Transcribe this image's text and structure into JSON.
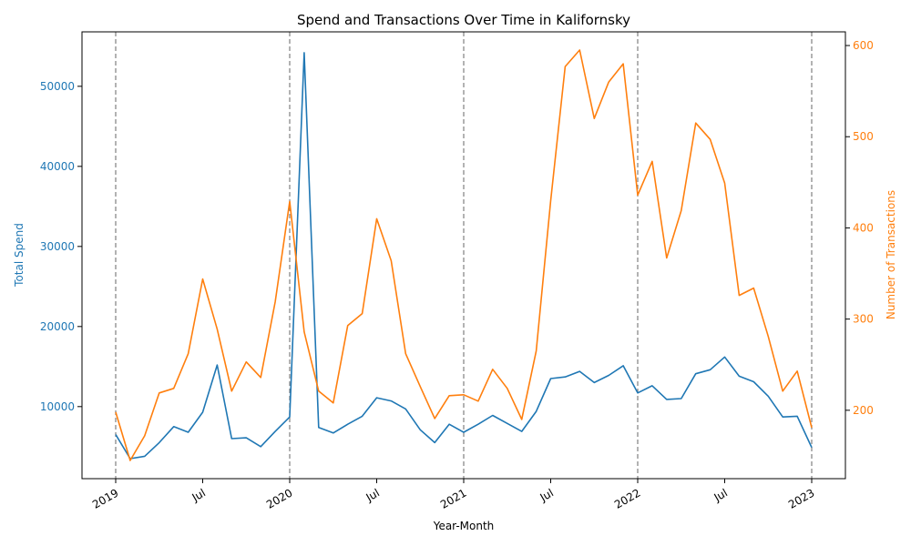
{
  "chart_data": {
    "type": "line",
    "title": "Spend and Transactions Over Time in Kalifornsky",
    "xlabel": "Year-Month",
    "ylabel_left": "Total Spend",
    "ylabel_right": "Number of Transactions",
    "x_ticks": [
      {
        "label": "2019",
        "date": "2019-01"
      },
      {
        "label": "Jul",
        "date": "2019-07"
      },
      {
        "label": "2020",
        "date": "2020-01"
      },
      {
        "label": "Jul",
        "date": "2020-07"
      },
      {
        "label": "2021",
        "date": "2021-01"
      },
      {
        "label": "Jul",
        "date": "2021-07"
      },
      {
        "label": "2022",
        "date": "2022-01"
      },
      {
        "label": "Jul",
        "date": "2022-07"
      },
      {
        "label": "2023",
        "date": "2023-01"
      }
    ],
    "year_markers": [
      "2019-01",
      "2020-01",
      "2021-01",
      "2022-01",
      "2023-01"
    ],
    "x": [
      "2019-01",
      "2019-02",
      "2019-03",
      "2019-04",
      "2019-05",
      "2019-06",
      "2019-07",
      "2019-08",
      "2019-09",
      "2019-10",
      "2019-11",
      "2019-12",
      "2020-01",
      "2020-02",
      "2020-03",
      "2020-04",
      "2020-05",
      "2020-06",
      "2020-07",
      "2020-08",
      "2020-09",
      "2020-10",
      "2020-11",
      "2020-12",
      "2021-01",
      "2021-02",
      "2021-03",
      "2021-04",
      "2021-05",
      "2021-06",
      "2021-07",
      "2021-08",
      "2021-09",
      "2021-10",
      "2021-11",
      "2021-12",
      "2022-01",
      "2022-02",
      "2022-03",
      "2022-04",
      "2022-05",
      "2022-06",
      "2022-07",
      "2022-08",
      "2022-09",
      "2022-10",
      "2022-11",
      "2022-12",
      "2023-01"
    ],
    "series": [
      {
        "name": "Total Spend",
        "axis": "left",
        "color": "#1f77b4",
        "values": [
          6500,
          3500,
          3800,
          5500,
          7500,
          6800,
          9300,
          15200,
          6000,
          6100,
          5000,
          6900,
          8700,
          54200,
          7400,
          6700,
          7800,
          8800,
          11100,
          10700,
          9700,
          7100,
          5500,
          7800,
          6800,
          7800,
          8900,
          7900,
          6900,
          9400,
          13500,
          13700,
          14400,
          13000,
          13900,
          15100,
          11700,
          12600,
          10900,
          11000,
          14100,
          14600,
          16200,
          13800,
          13100,
          11300,
          8700,
          8800,
          4900
        ]
      },
      {
        "name": "Number of Transactions",
        "axis": "right",
        "color": "#ff7f0e",
        "values": [
          198,
          145,
          172,
          219,
          224,
          262,
          344,
          289,
          221,
          253,
          236,
          319,
          429,
          286,
          221,
          208,
          293,
          306,
          410,
          364,
          262,
          226,
          191,
          216,
          217,
          210,
          245,
          224,
          190,
          265,
          430,
          577,
          595,
          520,
          560,
          580,
          436,
          473,
          367,
          419,
          515,
          497,
          449,
          326,
          334,
          281,
          221,
          243,
          181
        ]
      }
    ],
    "ylim_left": [
      1000,
      56800
    ],
    "yticks_left": [
      10000,
      20000,
      30000,
      40000,
      50000
    ],
    "ylim_right": [
      125,
      615
    ],
    "yticks_right": [
      200,
      300,
      400,
      500,
      600
    ],
    "grid": false
  }
}
